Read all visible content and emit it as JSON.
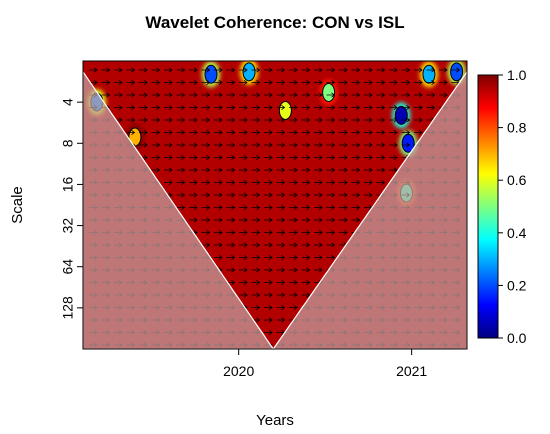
{
  "chart_data": {
    "type": "heatmap",
    "title": "Wavelet Coherence: CON vs ISL",
    "xlabel": "Years",
    "ylabel": "Scale",
    "x_ticks": [
      {
        "label": "2020",
        "value": 2020.0
      },
      {
        "label": "2021",
        "value": 2021.0
      }
    ],
    "xlim": [
      2019.1,
      2021.32
    ],
    "y_scale": "log2",
    "y_ticks": [
      {
        "label": "4",
        "value": 4
      },
      {
        "label": "8",
        "value": 8
      },
      {
        "label": "16",
        "value": 16
      },
      {
        "label": "32",
        "value": 32
      },
      {
        "label": "64",
        "value": 64
      },
      {
        "label": "128",
        "value": 128
      }
    ],
    "ylim": [
      2,
      256
    ],
    "y_reversed": true,
    "colorbar": {
      "min": 0.0,
      "max": 1.0,
      "ticks": [
        "0.0",
        "0.2",
        "0.4",
        "0.6",
        "0.8",
        "1.0"
      ],
      "colors": [
        "#00007f",
        "#0000ff",
        "#007fff",
        "#00ffff",
        "#7fff7f",
        "#ffff00",
        "#ff7f00",
        "#ff0000",
        "#7f0000"
      ]
    },
    "background_coherence": 0.95,
    "cone_of_influence": {
      "center_year": 2020.2,
      "bottom_scale": 256,
      "edge_scale_left": 2.4,
      "edge_scale_right": 2.4,
      "fill_color": "#c4a3a3"
    },
    "low_coherence_regions": [
      {
        "year": 2019.18,
        "scale": 4.0,
        "coherence": 0.25
      },
      {
        "year": 2019.4,
        "scale": 7.2,
        "coherence": 0.7
      },
      {
        "year": 2019.84,
        "scale": 2.5,
        "coherence": 0.2
      },
      {
        "year": 2020.06,
        "scale": 2.4,
        "coherence": 0.3
      },
      {
        "year": 2020.27,
        "scale": 4.6,
        "coherence": 0.6
      },
      {
        "year": 2020.52,
        "scale": 3.4,
        "coherence": 0.5
      },
      {
        "year": 2020.94,
        "scale": 5.0,
        "coherence": 0.05
      },
      {
        "year": 2020.98,
        "scale": 8.0,
        "coherence": 0.15
      },
      {
        "year": 2020.97,
        "scale": 18.5,
        "coherence": 0.45
      },
      {
        "year": 2021.1,
        "scale": 2.5,
        "coherence": 0.3
      },
      {
        "year": 2021.26,
        "scale": 2.4,
        "coherence": 0.2
      }
    ],
    "phase_arrows": "rightward (in-phase) throughout",
    "grid": false,
    "legend": "colorbar on right"
  }
}
